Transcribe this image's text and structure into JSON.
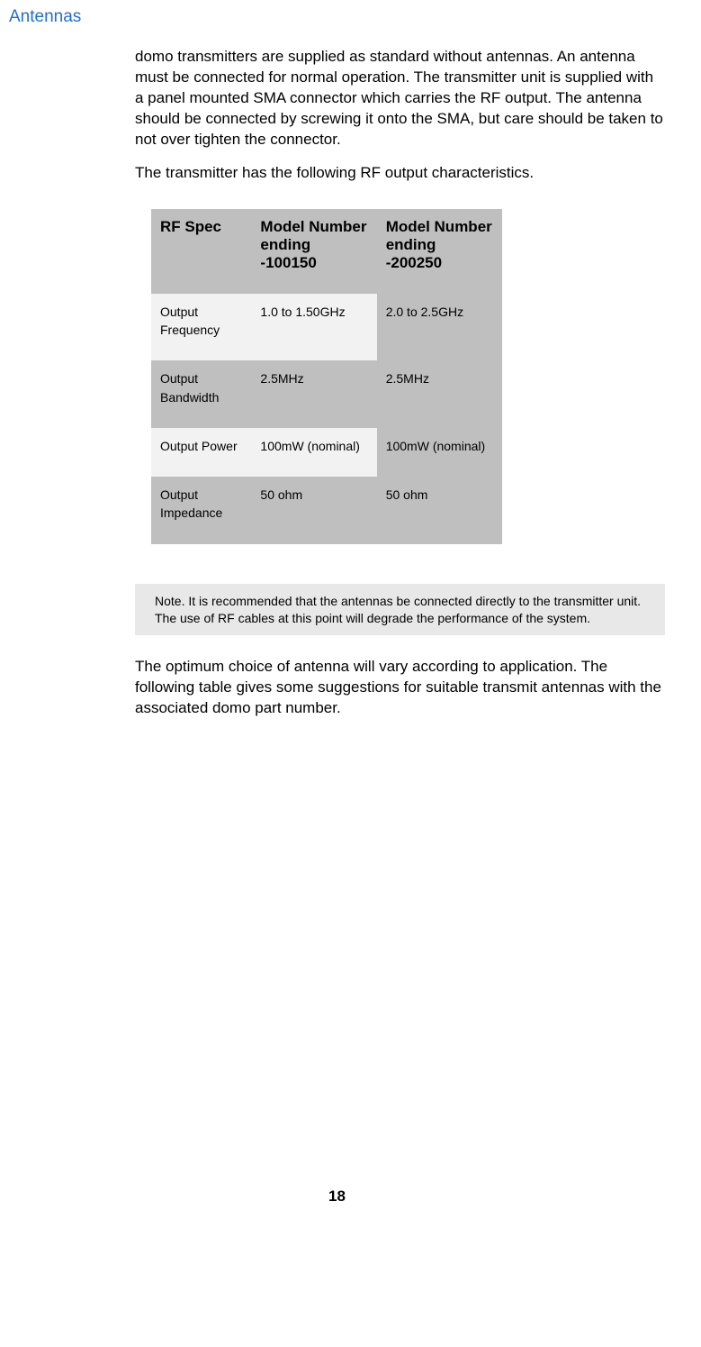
{
  "heading": "Antennas",
  "paragraphs": {
    "p1": "domo transmitters are supplied as standard without antennas.  An antenna must be connected for normal operation.  The transmitter unit is supplied with a panel mounted SMA connector which carries the RF output.  The antenna should be connected by screwing it onto the SMA, but care should be taken to not over tighten the connector.",
    "p2": "The transmitter has the following RF output characteristics.",
    "p3": "The optimum choice of antenna will vary according to application.  The following table gives some suggestions for suitable transmit antennas with the associated domo part number."
  },
  "table": {
    "headers": {
      "spec": "RF Spec",
      "model1": "Model Number ending -100150",
      "model2": "Model Number ending -200250"
    },
    "rows": [
      {
        "spec": "Output Frequency",
        "m1": "1.0 to 1.50GHz",
        "m2": "2.0 to 2.5GHz"
      },
      {
        "spec": "Output Bandwidth",
        "m1": "2.5MHz",
        "m2": "2.5MHz"
      },
      {
        "spec": "Output Power",
        "m1": "100mW (nominal)",
        "m2": "100mW (nominal)"
      },
      {
        "spec": "Output Impedance",
        "m1": "50 ohm",
        "m2": "50 ohm"
      }
    ]
  },
  "note": "Note.  It is recommended that the antennas be connected directly to the transmitter unit.  The use of RF cables at this point will degrade the performance of the system.",
  "page_number": "18",
  "colors": {
    "heading": "#1f6fcf",
    "header_bg": "#bfbfbf",
    "light_bg": "#f2f2f2",
    "note_bg": "#e8e8e8",
    "text": "#000000",
    "page_bg": "#ffffff"
  }
}
